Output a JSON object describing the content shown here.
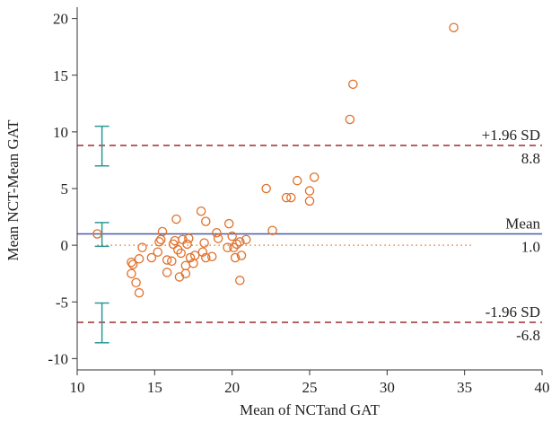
{
  "chart_data": {
    "type": "scatter",
    "title": "",
    "xlabel": "Mean of NCTand GAT",
    "ylabel": "Mean NCT-Mean GAT",
    "xlim": [
      10,
      40
    ],
    "ylim": [
      -11,
      21
    ],
    "xticks": [
      10,
      15,
      20,
      25,
      30,
      35,
      40
    ],
    "yticks": [
      -10,
      -5,
      0,
      5,
      10,
      15,
      20
    ],
    "ytick_labels": [
      "-10",
      "-5",
      "0",
      "5",
      "10",
      "15",
      "20"
    ],
    "grid": false,
    "points": [
      {
        "x": 11.3,
        "y": 1.0
      },
      {
        "x": 13.5,
        "y": -1.5
      },
      {
        "x": 13.6,
        "y": -1.7
      },
      {
        "x": 13.5,
        "y": -2.5
      },
      {
        "x": 13.8,
        "y": -3.3
      },
      {
        "x": 14.0,
        "y": -1.2
      },
      {
        "x": 14.0,
        "y": -4.2
      },
      {
        "x": 14.2,
        "y": -0.2
      },
      {
        "x": 14.8,
        "y": -1.1
      },
      {
        "x": 15.2,
        "y": -0.6
      },
      {
        "x": 15.3,
        "y": 0.3
      },
      {
        "x": 15.4,
        "y": 0.5
      },
      {
        "x": 15.5,
        "y": 1.2
      },
      {
        "x": 15.8,
        "y": -1.3
      },
      {
        "x": 15.8,
        "y": -2.4
      },
      {
        "x": 16.1,
        "y": -1.4
      },
      {
        "x": 16.2,
        "y": 0.1
      },
      {
        "x": 16.3,
        "y": 0.4
      },
      {
        "x": 16.4,
        "y": 2.3
      },
      {
        "x": 16.5,
        "y": -0.4
      },
      {
        "x": 16.6,
        "y": -2.8
      },
      {
        "x": 16.7,
        "y": -0.7
      },
      {
        "x": 16.8,
        "y": 0.5
      },
      {
        "x": 17.0,
        "y": -1.8
      },
      {
        "x": 17.0,
        "y": -2.5
      },
      {
        "x": 17.1,
        "y": 0.1
      },
      {
        "x": 17.2,
        "y": 0.6
      },
      {
        "x": 17.3,
        "y": -1.1
      },
      {
        "x": 17.5,
        "y": -1.6
      },
      {
        "x": 17.6,
        "y": -0.9
      },
      {
        "x": 18.0,
        "y": 3.0
      },
      {
        "x": 18.1,
        "y": -0.6
      },
      {
        "x": 18.2,
        "y": 0.2
      },
      {
        "x": 18.3,
        "y": -1.1
      },
      {
        "x": 18.3,
        "y": 2.1
      },
      {
        "x": 18.7,
        "y": -1.0
      },
      {
        "x": 19.0,
        "y": 1.1
      },
      {
        "x": 19.1,
        "y": 0.6
      },
      {
        "x": 19.7,
        "y": -0.2
      },
      {
        "x": 19.8,
        "y": 1.9
      },
      {
        "x": 20.0,
        "y": 0.8
      },
      {
        "x": 20.1,
        "y": -0.2
      },
      {
        "x": 20.2,
        "y": -1.1
      },
      {
        "x": 20.3,
        "y": 0.1
      },
      {
        "x": 20.5,
        "y": -3.1
      },
      {
        "x": 20.5,
        "y": 0.3
      },
      {
        "x": 20.6,
        "y": -0.9
      },
      {
        "x": 20.9,
        "y": 0.5
      },
      {
        "x": 22.2,
        "y": 5.0
      },
      {
        "x": 22.6,
        "y": 1.3
      },
      {
        "x": 23.5,
        "y": 4.2
      },
      {
        "x": 23.8,
        "y": 4.2
      },
      {
        "x": 24.2,
        "y": 5.7
      },
      {
        "x": 25.0,
        "y": 3.9
      },
      {
        "x": 25.0,
        "y": 4.8
      },
      {
        "x": 25.3,
        "y": 6.0
      },
      {
        "x": 27.6,
        "y": 11.1
      },
      {
        "x": 27.8,
        "y": 14.2
      },
      {
        "x": 34.3,
        "y": 19.2
      }
    ],
    "mean": {
      "value": 1.0,
      "label": "Mean",
      "value_label": "1.0"
    },
    "upper_loa": {
      "value": 8.8,
      "label": "+1.96 SD",
      "value_label": "8.8"
    },
    "lower_loa": {
      "value": -6.8,
      "label": "-1.96 SD",
      "value_label": "-6.8"
    },
    "zero_line": 0,
    "error_bars": [
      {
        "x": 11.6,
        "low": 7.0,
        "high": 10.5
      },
      {
        "x": 11.6,
        "low": -0.1,
        "high": 2.0
      },
      {
        "x": 11.6,
        "low": -8.6,
        "high": -5.1
      }
    ],
    "colors": {
      "points": "#e0702a",
      "mean_line": "#4a5aa8",
      "loa_line": "#9e2f2f",
      "zero_line": "#e0702a",
      "error_bars": "#2a9a94",
      "axis": "#333333"
    }
  }
}
